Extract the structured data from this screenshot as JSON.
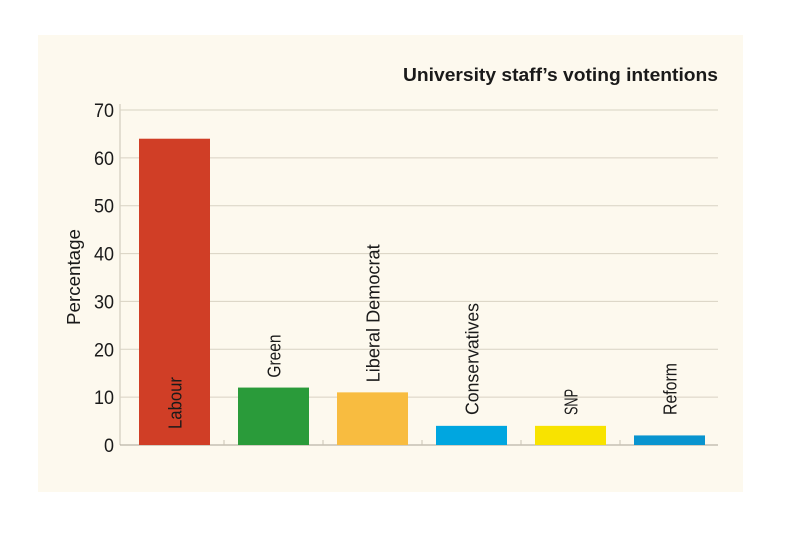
{
  "chart_data": {
    "type": "bar",
    "title": "University staff’s voting intentions",
    "xlabel": "",
    "ylabel": "Percentage",
    "ylim": [
      0,
      70
    ],
    "yticks": [
      0,
      10,
      20,
      30,
      40,
      50,
      60,
      70
    ],
    "grid": true,
    "categories": [
      "Labour",
      "Green",
      "Liberal Democrat",
      "Conservatives",
      "SNP",
      "Reform"
    ],
    "values": [
      64,
      12,
      11,
      4,
      4,
      2
    ],
    "colors": [
      "#d03e26",
      "#2a9b3a",
      "#f8bc40",
      "#00a6e0",
      "#f8e300",
      "#0994cf"
    ],
    "background": "#fdf9ee"
  }
}
